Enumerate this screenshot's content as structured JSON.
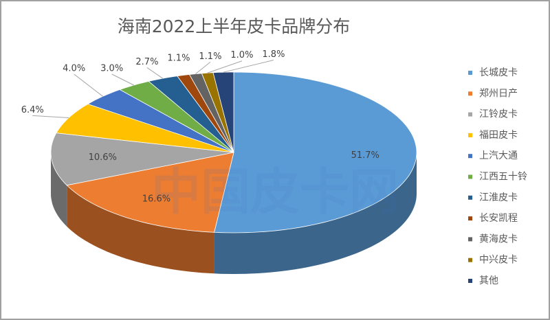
{
  "chart_data": {
    "type": "pie",
    "title": "海南2022上半年皮卡品牌分布",
    "watermark": "中国皮卡网",
    "categories": [
      "长城皮卡",
      "郑州日产",
      "江铃皮卡",
      "福田皮卡",
      "上汽大通",
      "江西五十铃",
      "江淮皮卡",
      "长安凯程",
      "黄海皮卡",
      "中兴皮卡",
      "其他"
    ],
    "values": [
      51.7,
      16.6,
      10.6,
      6.4,
      4.0,
      3.0,
      2.7,
      1.1,
      1.1,
      1.0,
      1.8
    ],
    "value_labels": [
      "51.7%",
      "16.6%",
      "10.6%",
      "6.4%",
      "4.0%",
      "3.0%",
      "2.7%",
      "1.1%",
      "1.1%",
      "1.0%",
      "1.8%"
    ],
    "colors": [
      "#5b9bd5",
      "#ed7d31",
      "#a5a5a5",
      "#ffc000",
      "#4472c4",
      "#70ad47",
      "#255e91",
      "#9e480e",
      "#636363",
      "#997300",
      "#264478"
    ],
    "legend": "right"
  }
}
